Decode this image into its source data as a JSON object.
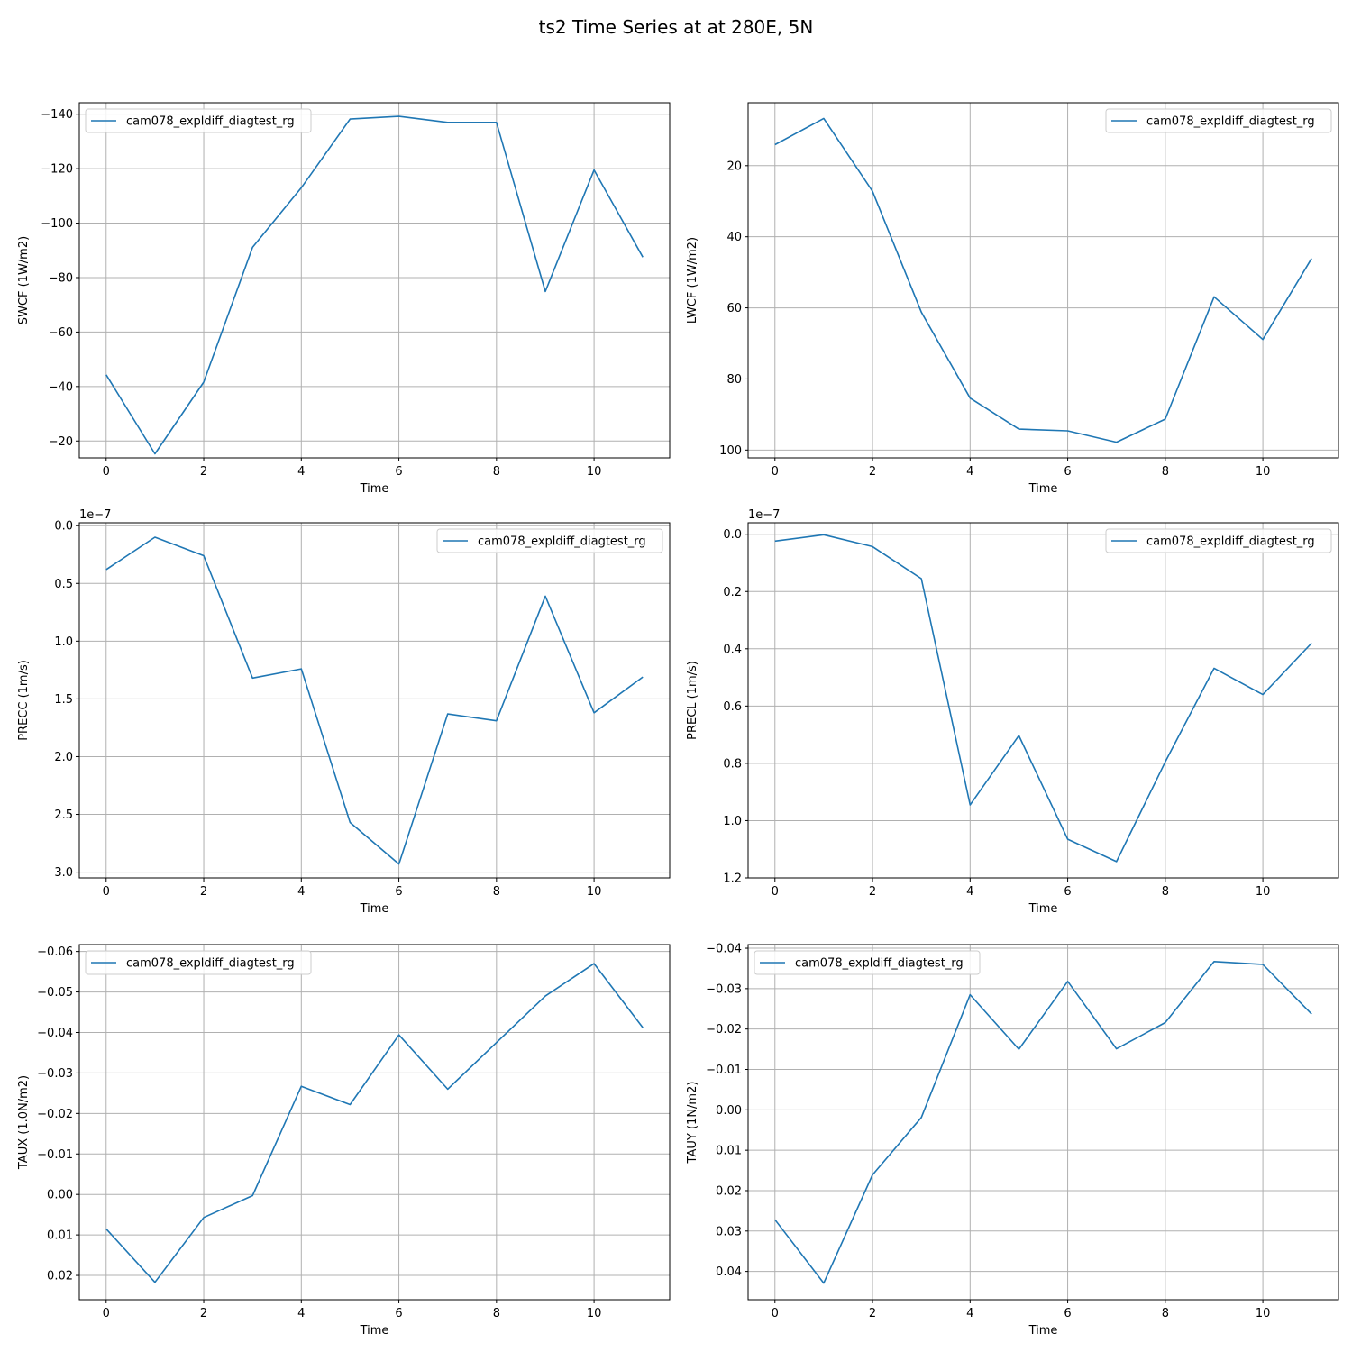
{
  "figure": {
    "title": "ts2 Time Series at at 280E, 5N"
  },
  "colors": {
    "series": "#1f77b4",
    "grid": "#b0b0b0",
    "axes": "#000000",
    "legend_border": "#cccccc"
  },
  "chart_data": [
    {
      "type": "line",
      "panel": "SWCF",
      "xlabel": "Time",
      "ylabel": "SWCF (1W/m2)",
      "y_inverted": true,
      "xlim": [
        -0.55,
        11.55
      ],
      "ylim": [
        -13.8,
        -144.2
      ],
      "x_ticks": [
        0,
        2,
        4,
        6,
        8,
        10
      ],
      "y_ticks": [
        -20,
        -40,
        -60,
        -80,
        -100,
        -120,
        -140
      ],
      "y_tick_labels": [
        "−20",
        "−40",
        "−60",
        "−80",
        "−100",
        "−120",
        "−140"
      ],
      "offset_text": "",
      "legend": {
        "location": "upper left"
      },
      "grid": true,
      "series": [
        {
          "name": "cam078_expldiff_diagtest_rg",
          "x": [
            0,
            1,
            2,
            3,
            4,
            5,
            6,
            7,
            8,
            9,
            10,
            11
          ],
          "y": [
            -44.3,
            -15.3,
            -41.6,
            -91.1,
            -113.0,
            -138.2,
            -139.2,
            -137.0,
            -137.0,
            -74.9,
            -119.5,
            -87.5
          ]
        }
      ]
    },
    {
      "type": "line",
      "panel": "LWCF",
      "xlabel": "Time",
      "ylabel": "LWCF (1W/m2)",
      "y_inverted": true,
      "xlim": [
        -0.55,
        11.55
      ],
      "ylim": [
        102.2,
        2.3
      ],
      "x_ticks": [
        0,
        2,
        4,
        6,
        8,
        10
      ],
      "y_ticks": [
        20,
        40,
        60,
        80,
        100
      ],
      "y_tick_labels": [
        "20",
        "40",
        "60",
        "80",
        "100"
      ],
      "offset_text": "",
      "legend": {
        "location": "upper right"
      },
      "grid": true,
      "series": [
        {
          "name": "cam078_expldiff_diagtest_rg",
          "x": [
            0,
            1,
            2,
            3,
            4,
            5,
            6,
            7,
            8,
            9,
            10,
            11
          ],
          "y": [
            14.1,
            6.7,
            27.2,
            61.2,
            85.4,
            94.1,
            94.6,
            97.8,
            91.3,
            56.9,
            68.9,
            46.1
          ]
        }
      ]
    },
    {
      "type": "line",
      "panel": "PRECC",
      "xlabel": "Time",
      "ylabel": "PRECC (1m/s)",
      "y_inverted": true,
      "xlim": [
        -0.55,
        11.55
      ],
      "ylim": [
        3.05,
        -0.025
      ],
      "x_ticks": [
        0,
        2,
        4,
        6,
        8,
        10
      ],
      "y_ticks": [
        0.0,
        0.5,
        1.0,
        1.5,
        2.0,
        2.5,
        3.0
      ],
      "y_tick_labels": [
        "0.0",
        "0.5",
        "1.0",
        "1.5",
        "2.0",
        "2.5",
        "3.0"
      ],
      "offset_text": "1e−7",
      "legend": {
        "location": "upper right"
      },
      "grid": true,
      "series": [
        {
          "name": "cam078_expldiff_diagtest_rg",
          "x": [
            0,
            1,
            2,
            3,
            4,
            5,
            6,
            7,
            8,
            9,
            10,
            11
          ],
          "y": [
            0.38,
            0.1,
            0.26,
            1.32,
            1.24,
            2.57,
            2.93,
            1.63,
            1.69,
            0.61,
            1.62,
            1.31
          ]
        }
      ]
    },
    {
      "type": "line",
      "panel": "PRECL",
      "xlabel": "Time",
      "ylabel": "PRECL (1m/s)",
      "y_inverted": true,
      "xlim": [
        -0.55,
        11.55
      ],
      "ylim": [
        1.2,
        -0.04
      ],
      "x_ticks": [
        0,
        2,
        4,
        6,
        8,
        10
      ],
      "y_ticks": [
        0.0,
        0.2,
        0.4,
        0.6,
        0.8,
        1.0,
        1.2
      ],
      "y_tick_labels": [
        "0.0",
        "0.2",
        "0.4",
        "0.6",
        "0.8",
        "1.0",
        "1.2"
      ],
      "offset_text": "1e−7",
      "legend": {
        "location": "upper right"
      },
      "grid": true,
      "series": [
        {
          "name": "cam078_expldiff_diagtest_rg",
          "x": [
            0,
            1,
            2,
            3,
            4,
            5,
            6,
            7,
            8,
            9,
            10,
            11
          ],
          "y": [
            0.024,
            0.002,
            0.043,
            0.155,
            0.945,
            0.703,
            1.065,
            1.143,
            0.795,
            0.468,
            0.56,
            0.38
          ]
        }
      ]
    },
    {
      "type": "line",
      "panel": "TAUX",
      "xlabel": "Time",
      "ylabel": "TAUX (1.0N/m2)",
      "y_inverted": true,
      "xlim": [
        -0.55,
        11.55
      ],
      "ylim": [
        0.026,
        -0.0617
      ],
      "x_ticks": [
        0,
        2,
        4,
        6,
        8,
        10
      ],
      "y_ticks": [
        0.02,
        0.01,
        0.0,
        -0.01,
        -0.02,
        -0.03,
        -0.04,
        -0.05,
        -0.06
      ],
      "y_tick_labels": [
        "0.02",
        "0.01",
        "0.00",
        "−0.01",
        "−0.02",
        "−0.03",
        "−0.04",
        "−0.05",
        "−0.06"
      ],
      "offset_text": "",
      "legend": {
        "location": "upper left"
      },
      "grid": true,
      "series": [
        {
          "name": "cam078_expldiff_diagtest_rg",
          "x": [
            0,
            1,
            2,
            3,
            4,
            5,
            6,
            7,
            8,
            9,
            10,
            11
          ],
          "y": [
            0.0085,
            0.0217,
            0.0057,
            0.0003,
            -0.0267,
            -0.0222,
            -0.0394,
            -0.026,
            -0.0375,
            -0.049,
            -0.057,
            -0.0412
          ]
        }
      ]
    },
    {
      "type": "line",
      "panel": "TAUY",
      "xlabel": "Time",
      "ylabel": "TAUY (1N/m2)",
      "y_inverted": true,
      "xlim": [
        -0.55,
        11.55
      ],
      "ylim": [
        0.047,
        -0.0409
      ],
      "x_ticks": [
        0,
        2,
        4,
        6,
        8,
        10
      ],
      "y_ticks": [
        0.04,
        0.03,
        0.02,
        0.01,
        0.0,
        -0.01,
        -0.02,
        -0.03,
        -0.04
      ],
      "y_tick_labels": [
        "0.04",
        "0.03",
        "0.02",
        "0.01",
        "0.00",
        "−0.01",
        "−0.02",
        "−0.03",
        "−0.04"
      ],
      "offset_text": "",
      "legend": {
        "location": "upper left"
      },
      "grid": true,
      "series": [
        {
          "name": "cam078_expldiff_diagtest_rg",
          "x": [
            0,
            1,
            2,
            3,
            4,
            5,
            6,
            7,
            8,
            9,
            10,
            11
          ],
          "y": [
            0.0272,
            0.0429,
            0.0161,
            0.0019,
            -0.0285,
            -0.015,
            -0.0318,
            -0.0151,
            -0.0216,
            -0.0367,
            -0.036,
            -0.0237
          ]
        }
      ]
    }
  ]
}
